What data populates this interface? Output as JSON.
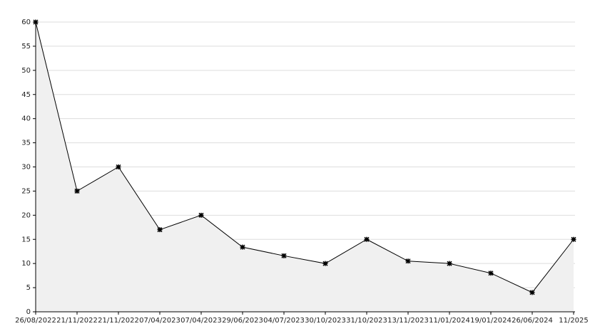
{
  "chart_data": {
    "type": "area",
    "categories": [
      "26/08/2022",
      "21/11/2022",
      "21/11/2022",
      "07/04/2023",
      "07/04/2023",
      "29/06/2023",
      "04/07/2023",
      "30/10/2023",
      "31/10/2023",
      "13/11/2023",
      "11/01/2024",
      "19/01/2024",
      "26/06/2024",
      "11/2025"
    ],
    "values": [
      60,
      25,
      30,
      17,
      20,
      13.4,
      11.6,
      10,
      15,
      10.5,
      10,
      8,
      4,
      15
    ],
    "color": "#000000",
    "fill": "#f0f0f0",
    "ylim": [
      0,
      60
    ],
    "yticks": [
      0,
      5,
      10,
      15,
      20,
      25,
      30,
      35,
      40,
      45,
      50,
      55,
      60
    ],
    "grid": true
  }
}
